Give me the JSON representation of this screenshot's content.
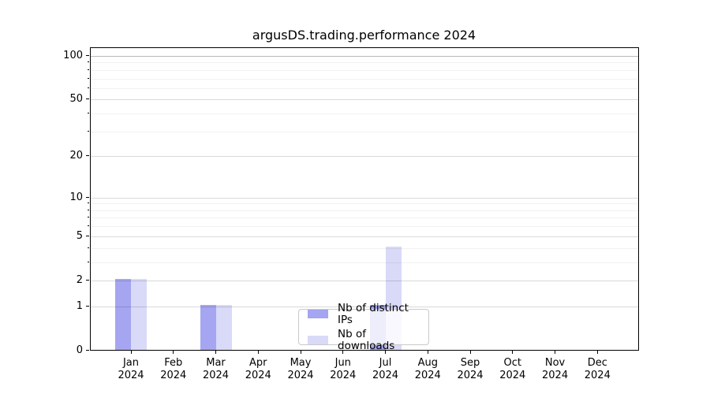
{
  "chart_data": {
    "type": "bar",
    "title": "argusDS.trading.performance 2024",
    "categories": [
      "Jan",
      "Feb",
      "Mar",
      "Apr",
      "May",
      "Jun",
      "Jul",
      "Aug",
      "Sep",
      "Oct",
      "Nov",
      "Dec"
    ],
    "xtick_second_line": "2024",
    "series": [
      {
        "name": "Nb of distinct IPs",
        "color": "#a5a5f1",
        "values": [
          2,
          0,
          1,
          0,
          0,
          0,
          1,
          0,
          0,
          0,
          0,
          0
        ]
      },
      {
        "name": "Nb of downloads",
        "color": "#d9d9f8",
        "values": [
          2,
          0,
          1,
          0,
          0,
          0,
          4,
          0,
          0,
          0,
          0,
          0
        ]
      }
    ],
    "yscale": "log10(1+value)",
    "ylim": [
      0,
      114
    ],
    "yticks_major": [
      0,
      1,
      2,
      5,
      10,
      20,
      50,
      100
    ],
    "yticks_minor": [
      3,
      4,
      6,
      7,
      8,
      9,
      30,
      40,
      60,
      70,
      80,
      90
    ],
    "grid": "both",
    "legend_position": "lower center"
  }
}
